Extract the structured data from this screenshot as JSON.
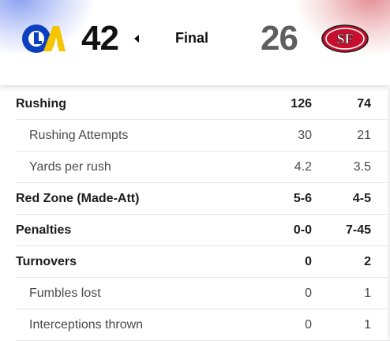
{
  "scoreboard": {
    "home": {
      "team_logo": "rams-logo",
      "logo_text": "LA",
      "score": "42",
      "possession_icon": "possession-arrow-icon"
    },
    "status": "Final",
    "away": {
      "team_logo": "49ers-logo",
      "logo_text": "SF",
      "score": "26"
    }
  },
  "colors": {
    "rams_blue": "#0a3fc0",
    "rams_gold": "#f6c400",
    "niners_red": "#c8102e",
    "niners_gold": "#b3995d"
  },
  "stats": [
    {
      "label": "Rushing",
      "home": "126",
      "away": "74",
      "type": "main"
    },
    {
      "label": "Rushing Attempts",
      "home": "30",
      "away": "21",
      "type": "sub"
    },
    {
      "label": "Yards per rush",
      "home": "4.2",
      "away": "3.5",
      "type": "sub"
    },
    {
      "label": "Red Zone (Made-Att)",
      "home": "5-6",
      "away": "4-5",
      "type": "main"
    },
    {
      "label": "Penalties",
      "home": "0-0",
      "away": "7-45",
      "type": "main"
    },
    {
      "label": "Turnovers",
      "home": "0",
      "away": "2",
      "type": "main"
    },
    {
      "label": "Fumbles lost",
      "home": "0",
      "away": "1",
      "type": "sub"
    },
    {
      "label": "Interceptions thrown",
      "home": "0",
      "away": "1",
      "type": "sub"
    }
  ]
}
